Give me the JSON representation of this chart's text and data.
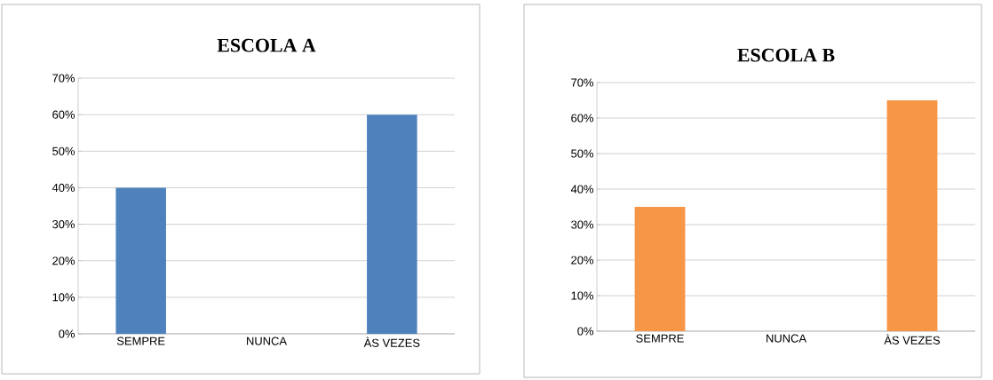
{
  "chart_data": [
    {
      "type": "bar",
      "title": "ESCOLA  A",
      "categories": [
        "SEMPRE",
        "NUNCA",
        "ÀS VEZES"
      ],
      "series": [
        {
          "color": "#4f81bd",
          "values": [
            40,
            0,
            60
          ]
        }
      ],
      "ylim": [
        0,
        70
      ],
      "yticks": [
        {
          "value": 0,
          "label": "0%"
        },
        {
          "value": 10,
          "label": "10%"
        },
        {
          "value": 20,
          "label": "20%"
        },
        {
          "value": 30,
          "label": "30%"
        },
        {
          "value": 40,
          "label": "40%"
        },
        {
          "value": 50,
          "label": "50%"
        },
        {
          "value": 60,
          "label": "60%"
        },
        {
          "value": 70,
          "label": "70%"
        }
      ],
      "grid": "y"
    },
    {
      "type": "bar",
      "title": "ESCOLA  B",
      "categories": [
        "SEMPRE",
        "NUNCA",
        "ÀS VEZES"
      ],
      "series": [
        {
          "color": "#f79646",
          "values": [
            35,
            0,
            65
          ]
        }
      ],
      "ylim": [
        0,
        70
      ],
      "yticks": [
        {
          "value": 0,
          "label": "0%"
        },
        {
          "value": 10,
          "label": "10%"
        },
        {
          "value": 20,
          "label": "20%"
        },
        {
          "value": 30,
          "label": "30%"
        },
        {
          "value": 40,
          "label": "40%"
        },
        {
          "value": 50,
          "label": "50%"
        },
        {
          "value": 60,
          "label": "60%"
        },
        {
          "value": 70,
          "label": "70%"
        }
      ],
      "grid": "y"
    }
  ]
}
